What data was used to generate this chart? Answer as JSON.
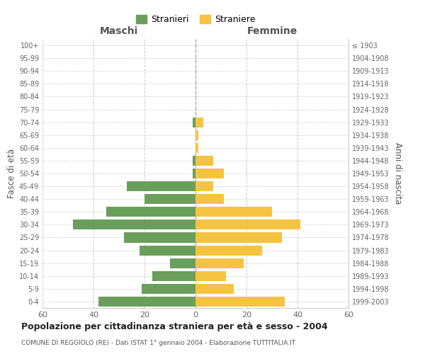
{
  "age_groups": [
    "0-4",
    "5-9",
    "10-14",
    "15-19",
    "20-24",
    "25-29",
    "30-34",
    "35-39",
    "40-44",
    "45-49",
    "50-54",
    "55-59",
    "60-64",
    "65-69",
    "70-74",
    "75-79",
    "80-84",
    "85-89",
    "90-94",
    "95-99",
    "100+"
  ],
  "birth_years": [
    "1999-2003",
    "1994-1998",
    "1989-1993",
    "1984-1988",
    "1979-1983",
    "1974-1978",
    "1969-1973",
    "1964-1968",
    "1959-1963",
    "1954-1958",
    "1949-1953",
    "1944-1948",
    "1939-1943",
    "1934-1938",
    "1929-1933",
    "1924-1928",
    "1919-1923",
    "1914-1918",
    "1909-1913",
    "1904-1908",
    "≤ 1903"
  ],
  "maschi": [
    38,
    21,
    17,
    10,
    22,
    28,
    48,
    35,
    20,
    27,
    1,
    1,
    0,
    0,
    1,
    0,
    0,
    0,
    0,
    0,
    0
  ],
  "femmine": [
    35,
    15,
    12,
    19,
    26,
    34,
    41,
    30,
    11,
    7,
    11,
    7,
    1,
    1,
    3,
    0,
    0,
    0,
    0,
    0,
    0
  ],
  "color_maschi": "#6a9e5b",
  "color_femmine": "#f5c342",
  "xlim": 60,
  "title": "Popolazione per cittadinanza straniera per età e sesso - 2004",
  "subtitle": "COMUNE DI REGGIOLO (RE) - Dati ISTAT 1° gennaio 2004 - Elaborazione TUTTITALIA.IT",
  "ylabel_left": "Fasce di età",
  "ylabel_right": "Anni di nascita",
  "xlabel_left": "Maschi",
  "xlabel_right": "Femmine",
  "legend_maschi": "Stranieri",
  "legend_femmine": "Straniere",
  "bg_color": "#ffffff",
  "grid_color": "#cccccc"
}
